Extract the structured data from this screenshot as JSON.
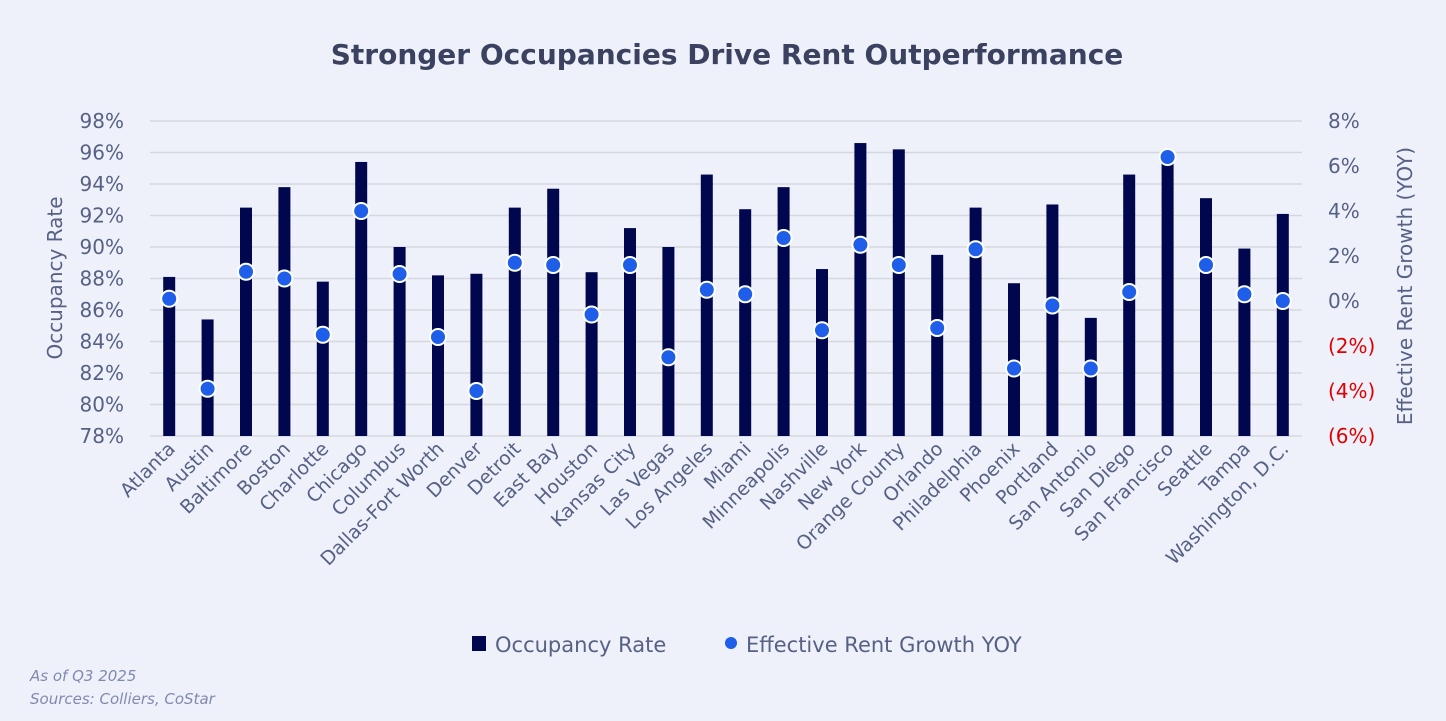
{
  "chart_data": {
    "type": "bar",
    "title": "Stronger Occupancies Drive Rent Outperformance",
    "categories": [
      "Atlanta",
      "Austin",
      "Baltimore",
      "Boston",
      "Charlotte",
      "Chicago",
      "Columbus",
      "Dallas-Fort Worth",
      "Denver",
      "Detroit",
      "East Bay",
      "Houston",
      "Kansas City",
      "Las Vegas",
      "Los Angeles",
      "Miami",
      "Minneapolis",
      "Nashville",
      "New York",
      "Orange County",
      "Orlando",
      "Philadelphia",
      "Phoenix",
      "Portland",
      "San Antonio",
      "San Diego",
      "San Francisco",
      "Seattle",
      "Tampa",
      "Washington, D.C."
    ],
    "series": [
      {
        "name": "Occupancy Rate",
        "type": "bar",
        "axis": "left",
        "color": "#00074f",
        "values": [
          88.1,
          85.4,
          92.5,
          93.8,
          87.8,
          95.4,
          90.0,
          88.2,
          88.3,
          92.5,
          93.7,
          88.4,
          91.2,
          90.0,
          94.6,
          92.4,
          93.8,
          88.6,
          96.6,
          96.2,
          89.5,
          92.5,
          87.7,
          92.7,
          85.5,
          94.6,
          95.6,
          93.1,
          89.9,
          92.1
        ]
      },
      {
        "name": "Effective Rent Growth YOY",
        "type": "scatter",
        "axis": "right",
        "color": "#1f5ee8",
        "values": [
          0.1,
          -3.9,
          1.3,
          1.0,
          -1.5,
          4.0,
          1.2,
          -1.6,
          -4.0,
          1.7,
          1.6,
          -0.6,
          1.6,
          -2.5,
          0.5,
          0.3,
          2.8,
          -1.3,
          2.5,
          1.6,
          -1.2,
          2.3,
          -3.0,
          -0.2,
          -3.0,
          0.4,
          6.4,
          1.6,
          0.3,
          0.0
        ]
      }
    ],
    "ylabel": "Occupancy Rate",
    "ylim": [
      78,
      98
    ],
    "yticks": [
      "78%",
      "80%",
      "82%",
      "84%",
      "86%",
      "88%",
      "90%",
      "92%",
      "94%",
      "96%",
      "98%"
    ],
    "y2label": "Effective Rent Growth (YOY)",
    "y2lim": [
      -6,
      8
    ],
    "y2ticks": [
      "(6%)",
      "(4%)",
      "(2%)",
      "0%",
      "2%",
      "4%",
      "6%",
      "8%"
    ],
    "negative_tick_color": "#e00000",
    "grid": true,
    "legend": "bottom"
  },
  "footer": {
    "note": "As of Q3 2025",
    "sources": "Sources: Colliers, CoStar"
  }
}
